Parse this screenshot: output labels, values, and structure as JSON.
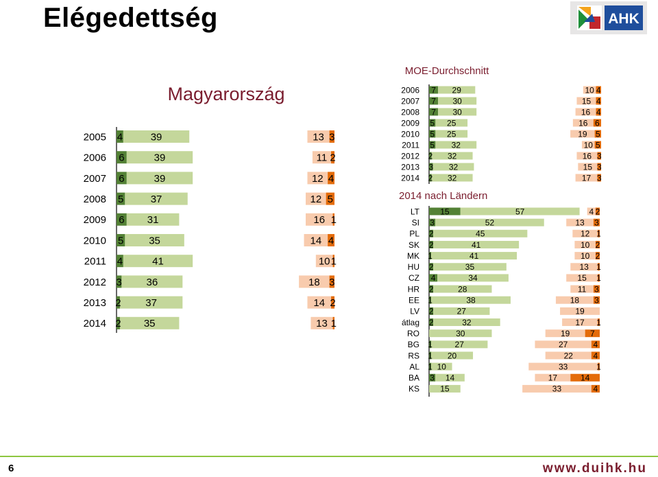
{
  "page": {
    "title": "Elégedettség",
    "logo_text": "AHK",
    "page_number": "6",
    "url": "www.duihk.hu"
  },
  "colors": {
    "dark_green": "#538135",
    "light_green": "#c4d79b",
    "light_orange": "#f8cbad",
    "dark_orange": "#e46c0a",
    "accent_red": "#7a1d2e"
  },
  "chart_data": [
    {
      "type": "bar",
      "title": "Magyarország",
      "categories": [
        "2005",
        "2006",
        "2007",
        "2008",
        "2009",
        "2010",
        "2011",
        "2012",
        "2013",
        "2014"
      ],
      "series": [
        {
          "values": [
            4,
            6,
            6,
            5,
            6,
            5,
            4,
            3,
            2,
            2
          ]
        },
        {
          "values": [
            39,
            39,
            39,
            37,
            31,
            35,
            41,
            36,
            37,
            35
          ]
        },
        {
          "values": [
            13,
            11,
            12,
            12,
            16,
            14,
            10,
            18,
            14,
            13
          ]
        },
        {
          "values": [
            3,
            2,
            4,
            5,
            1,
            4,
            1,
            3,
            2,
            1
          ]
        }
      ]
    },
    {
      "type": "bar",
      "title": "MOE-Durchschnitt",
      "categories": [
        "2006",
        "2007",
        "2008",
        "2009",
        "2010",
        "2011",
        "2012",
        "2013",
        "2014"
      ],
      "series": [
        {
          "values": [
            7,
            7,
            7,
            5,
            5,
            5,
            2,
            3,
            2
          ]
        },
        {
          "values": [
            29,
            30,
            30,
            25,
            25,
            32,
            32,
            32,
            32
          ]
        },
        {
          "values": [
            10,
            15,
            16,
            16,
            19,
            10,
            16,
            15,
            17
          ]
        },
        {
          "values": [
            4,
            4,
            4,
            6,
            5,
            5,
            3,
            3,
            3
          ]
        }
      ]
    },
    {
      "type": "bar",
      "title": "2014 nach Ländern",
      "categories": [
        "LT",
        "SI",
        "PL",
        "SK",
        "MK",
        "HU",
        "CZ",
        "HR",
        "EE",
        "LV",
        "átlag",
        "RO",
        "BG",
        "RS",
        "AL",
        "BA",
        "KS"
      ],
      "series": [
        {
          "values": [
            15,
            3,
            2,
            2,
            1,
            2,
            4,
            2,
            1,
            2,
            2,
            0,
            1,
            1,
            1,
            3,
            0
          ]
        },
        {
          "values": [
            57,
            52,
            45,
            41,
            41,
            35,
            34,
            28,
            38,
            27,
            32,
            30,
            27,
            20,
            10,
            14,
            15
          ]
        },
        {
          "values": [
            4,
            13,
            12,
            10,
            10,
            13,
            15,
            11,
            18,
            19,
            17,
            19,
            27,
            22,
            33,
            17,
            33
          ]
        },
        {
          "values": [
            2,
            3,
            1,
            2,
            2,
            1,
            1,
            3,
            3,
            0,
            1,
            7,
            4,
            4,
            1,
            14,
            4
          ]
        }
      ]
    }
  ]
}
